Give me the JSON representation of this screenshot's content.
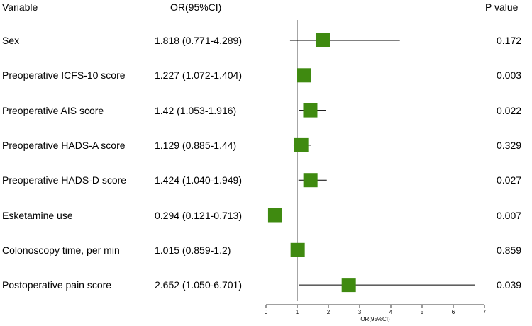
{
  "chart_data": {
    "type": "forest",
    "headers": {
      "variable": "Variable",
      "or": "OR(95%CI)",
      "p": "P value"
    },
    "reference_line": 1,
    "xlim": [
      0,
      7
    ],
    "xticks": [
      0,
      1,
      2,
      3,
      4,
      5,
      6,
      7
    ],
    "xlabel": "OR(95%CI)",
    "marker_color": "#3f8a10",
    "rows": [
      {
        "variable": "Sex",
        "or_text": "1.818 (0.771-4.289)",
        "or": 1.818,
        "lo": 0.771,
        "hi": 4.289,
        "p": "0.172"
      },
      {
        "variable": "Preoperative ICFS-10 score",
        "or_text": "1.227 (1.072-1.404)",
        "or": 1.227,
        "lo": 1.072,
        "hi": 1.404,
        "p": "0.003"
      },
      {
        "variable": "Preoperative AIS score",
        "or_text": "1.42 (1.053-1.916)",
        "or": 1.42,
        "lo": 1.053,
        "hi": 1.916,
        "p": "0.022"
      },
      {
        "variable": "Preoperative HADS-A score",
        "or_text": "1.129 (0.885-1.44)",
        "or": 1.129,
        "lo": 0.885,
        "hi": 1.44,
        "p": "0.329"
      },
      {
        "variable": "Preoperative HADS-D score",
        "or_text": "1.424 (1.040-1.949)",
        "or": 1.424,
        "lo": 1.04,
        "hi": 1.949,
        "p": "0.027"
      },
      {
        "variable": "Esketamine use",
        "or_text": "0.294 (0.121-0.713)",
        "or": 0.294,
        "lo": 0.121,
        "hi": 0.713,
        "p": "0.007"
      },
      {
        "variable": "Colonoscopy time, per min",
        "or_text": "1.015 (0.859-1.2)",
        "or": 1.015,
        "lo": 0.859,
        "hi": 1.2,
        "p": "0.859"
      },
      {
        "variable": "Postoperative pain score",
        "or_text": "2.652 (1.050-6.701)",
        "or": 2.652,
        "lo": 1.05,
        "hi": 6.701,
        "p": "0.039"
      }
    ]
  }
}
